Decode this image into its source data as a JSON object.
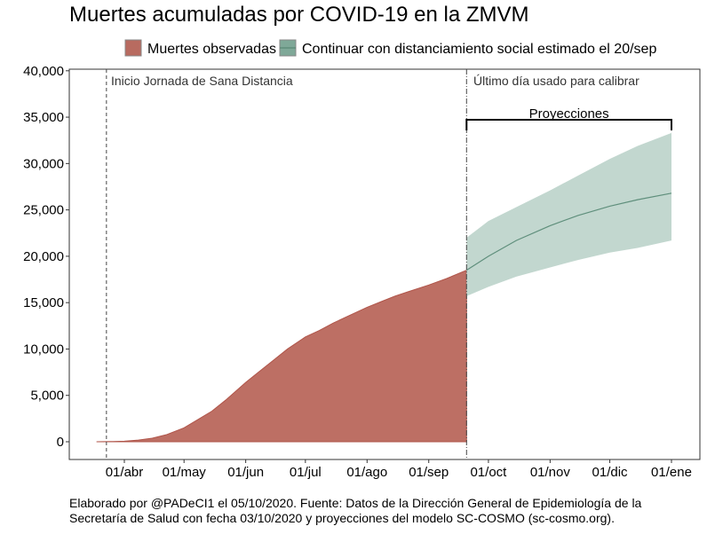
{
  "chart_data": {
    "type": "area",
    "title": "Muertes acumuladas por COVID-19 en la ZMVM",
    "legend": {
      "placement": "top",
      "entries": [
        {
          "label": "Muertes observadas",
          "color": "#b86b60"
        },
        {
          "label": "Continuar con distanciamiento social estimado el 20/sep",
          "color": "#7fa898"
        }
      ]
    },
    "xlabel": "",
    "ylabel": "",
    "ylim": [
      -1500,
      40500
    ],
    "y_ticks": [
      0,
      5000,
      10000,
      15000,
      20000,
      25000,
      30000,
      35000,
      40000
    ],
    "y_tick_labels": [
      "0",
      "5,000",
      "10,000",
      "15,000",
      "20,000",
      "25,000",
      "30,000",
      "35,000",
      "40,000"
    ],
    "x_ticks": [
      "2020-04-01",
      "2020-05-01",
      "2020-06-01",
      "2020-07-01",
      "2020-08-01",
      "2020-09-01",
      "2020-10-01",
      "2020-11-01",
      "2020-12-01",
      "2021-01-01"
    ],
    "x_tick_labels": [
      "01/abr",
      "01/may",
      "01/jun",
      "01/jul",
      "01/ago",
      "01/sep",
      "01/oct",
      "01/nov",
      "01/dic",
      "01/ene"
    ],
    "grid": false,
    "observed": {
      "dates": [
        "2020-03-18",
        "2020-03-25",
        "2020-04-01",
        "2020-04-08",
        "2020-04-15",
        "2020-04-22",
        "2020-05-01",
        "2020-05-08",
        "2020-05-15",
        "2020-05-22",
        "2020-06-01",
        "2020-06-08",
        "2020-06-15",
        "2020-06-22",
        "2020-07-01",
        "2020-07-08",
        "2020-07-15",
        "2020-07-22",
        "2020-08-01",
        "2020-08-08",
        "2020-08-15",
        "2020-08-22",
        "2020-09-01",
        "2020-09-10",
        "2020-09-20"
      ],
      "values": [
        0,
        20,
        60,
        180,
        380,
        750,
        1500,
        2400,
        3300,
        4500,
        6400,
        7600,
        8800,
        10000,
        11300,
        12000,
        12800,
        13500,
        14500,
        15100,
        15700,
        16200,
        16900,
        17600,
        18500
      ]
    },
    "projection": {
      "dates": [
        "2020-09-20",
        "2020-10-01",
        "2020-10-15",
        "2020-11-01",
        "2020-11-15",
        "2020-12-01",
        "2020-12-15",
        "2021-01-01"
      ],
      "central": [
        18500,
        20000,
        21700,
        23300,
        24400,
        25400,
        26100,
        26800
      ],
      "upper": [
        22000,
        23800,
        25300,
        27100,
        28700,
        30500,
        31900,
        33300
      ],
      "lower": [
        15700,
        16700,
        17800,
        18800,
        19600,
        20400,
        20900,
        21700
      ]
    },
    "annotations": {
      "intervention": {
        "date": "2020-03-23",
        "label": "Inicio Jornada de Sana Distancia"
      },
      "calibration": {
        "date": "2020-09-20",
        "label": "Último día usado para calibrar"
      },
      "bracket": {
        "label": "Proyecciones"
      }
    },
    "caption": [
      "Elaborado por @PADeCI1 el 05/10/2020. Fuente: Datos de la Dirección General de Epidemiología de la",
      "Secretaría de Salud con fecha 03/10/2020 y proyecciones del modelo SC-COSMO (sc-cosmo.org)."
    ]
  }
}
